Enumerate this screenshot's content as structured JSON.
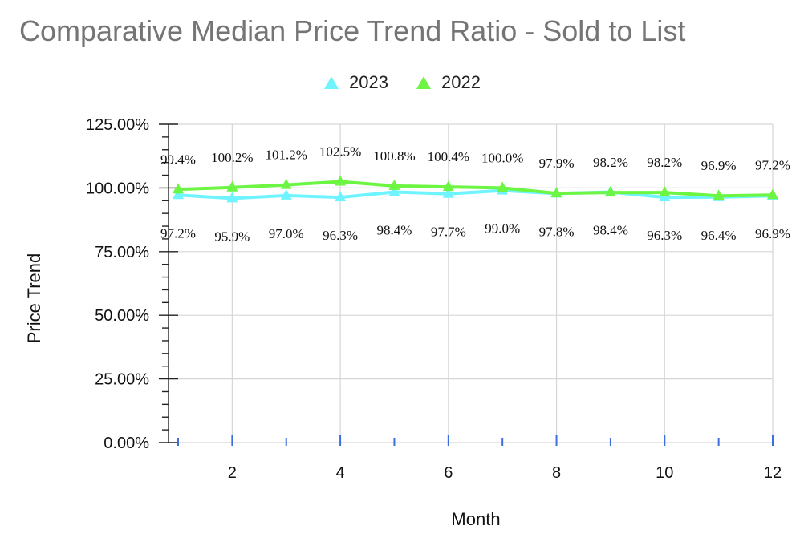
{
  "chart_data": {
    "type": "line",
    "title": "Comparative Median Price Trend Ratio - Sold to List",
    "xlabel": "Month",
    "ylabel": "Price Trend",
    "x": [
      1,
      2,
      3,
      4,
      5,
      6,
      7,
      8,
      9,
      10,
      11,
      12
    ],
    "xlim": [
      1,
      12
    ],
    "x_ticks": [
      2,
      4,
      6,
      8,
      10,
      12
    ],
    "ylim": [
      0,
      125
    ],
    "y_ticks": [
      0,
      25,
      50,
      75,
      100,
      125
    ],
    "y_tick_labels": [
      "0.00%",
      "25.00%",
      "50.00%",
      "75.00%",
      "100.00%",
      "125.00%"
    ],
    "grid": true,
    "legend_position": "top-center",
    "series": [
      {
        "name": "2023",
        "color": "#6ff4ff",
        "marker": "triangle",
        "values": [
          97.2,
          95.9,
          97.0,
          96.3,
          98.4,
          97.7,
          99.0,
          97.8,
          98.4,
          96.3,
          96.4,
          96.9
        ],
        "labels": [
          "97.2%",
          "95.9%",
          "97.0%",
          "96.3%",
          "98.4%",
          "97.7%",
          "99.0%",
          "97.8%",
          "98.4%",
          "96.3%",
          "96.4%",
          "96.9%"
        ],
        "label_position": "below"
      },
      {
        "name": "2022",
        "color": "#6cf542",
        "marker": "triangle",
        "values": [
          99.4,
          100.2,
          101.2,
          102.5,
          100.8,
          100.4,
          100.0,
          97.9,
          98.2,
          98.2,
          96.9,
          97.2
        ],
        "labels": [
          "99.4%",
          "100.2%",
          "101.2%",
          "102.5%",
          "100.8%",
          "100.4%",
          "100.0%",
          "97.9%",
          "98.2%",
          "98.2%",
          "96.9%",
          "97.2%"
        ],
        "label_position": "above"
      }
    ]
  }
}
